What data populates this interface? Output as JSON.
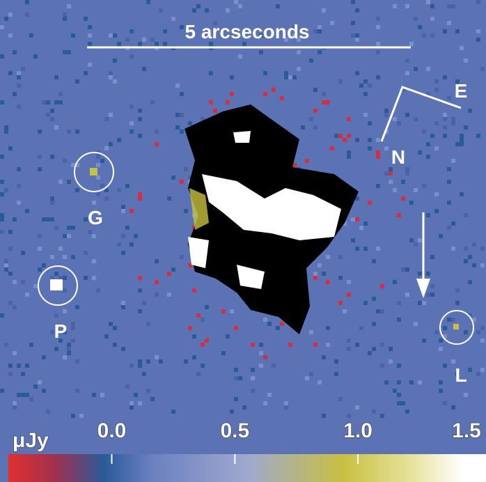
{
  "image": {
    "scale_bar_label": "5 arcseconds",
    "compass": {
      "east": "E",
      "north": "N"
    },
    "sources": [
      {
        "label": "G"
      },
      {
        "label": "P"
      },
      {
        "label": "L"
      }
    ],
    "colorbar": {
      "unit": "μJy",
      "lim": [
        -0.42,
        1.52
      ],
      "ticks": [
        {
          "value": 0,
          "label": "0.0"
        },
        {
          "value": 0.5,
          "label": "0.5"
        },
        {
          "value": 1,
          "label": "1.0"
        },
        {
          "value": 1.5,
          "label": "1.5"
        }
      ]
    }
  }
}
